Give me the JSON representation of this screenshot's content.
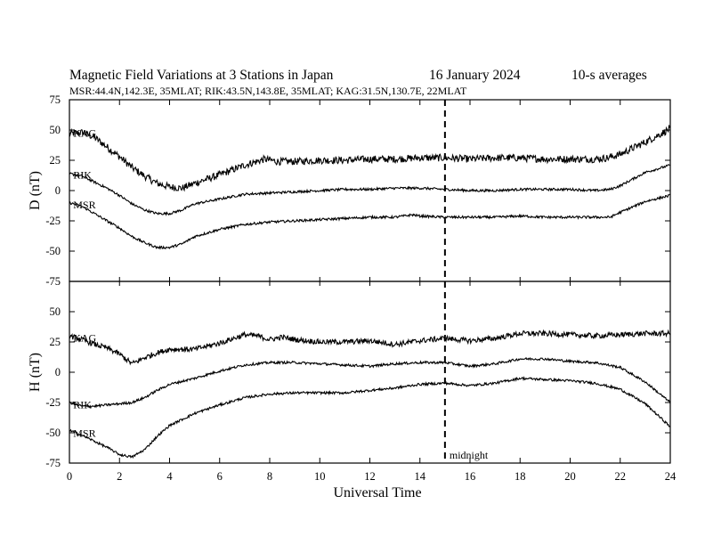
{
  "chart_data": {
    "type": "line",
    "title": {
      "main": "Magnetic Field Variations at 3 Stations in Japan",
      "date": "16 January  2024",
      "avg": "10-s averages"
    },
    "subtitle": "MSR:44.4N,142.3E, 35MLAT;  RIK:43.5N,143.8E, 35MLAT;  KAG:31.5N,130.7E, 22MLAT",
    "xlabel": "Universal Time",
    "xlim": [
      0,
      24
    ],
    "xticks": [
      0,
      2,
      4,
      6,
      8,
      10,
      12,
      14,
      16,
      18,
      20,
      22,
      24
    ],
    "midnight": {
      "x": 15,
      "label": "midnight"
    },
    "panels": [
      {
        "id": "D",
        "ylabel": "D (nT)",
        "ylim": [
          -75,
          75
        ],
        "yticks": [
          75,
          50,
          25,
          0,
          -25,
          -50,
          -75
        ],
        "series": [
          {
            "name": "KAG",
            "noise": 3.0,
            "points": [
              [
                0,
                47
              ],
              [
                0.5,
                48
              ],
              [
                1,
                44
              ],
              [
                1.5,
                36
              ],
              [
                2,
                28
              ],
              [
                2.5,
                19
              ],
              [
                3,
                12
              ],
              [
                3.5,
                6
              ],
              [
                4,
                3
              ],
              [
                4.5,
                2
              ],
              [
                5,
                6
              ],
              [
                6,
                13
              ],
              [
                7,
                21
              ],
              [
                7.8,
                26
              ],
              [
                8.3,
                24
              ],
              [
                9,
                24
              ],
              [
                10,
                25
              ],
              [
                11,
                25
              ],
              [
                12,
                26
              ],
              [
                13,
                26
              ],
              [
                14,
                27
              ],
              [
                15,
                27
              ],
              [
                16,
                26
              ],
              [
                17,
                27
              ],
              [
                18,
                27
              ],
              [
                19,
                26
              ],
              [
                20,
                26
              ],
              [
                21,
                26
              ],
              [
                21.5,
                27
              ],
              [
                22,
                30
              ],
              [
                23,
                40
              ],
              [
                24,
                51
              ]
            ]
          },
          {
            "name": "RIK",
            "noise": 1.0,
            "points": [
              [
                0,
                14
              ],
              [
                0.5,
                12
              ],
              [
                1,
                7
              ],
              [
                1.5,
                2
              ],
              [
                2,
                -4
              ],
              [
                2.5,
                -11
              ],
              [
                3,
                -16
              ],
              [
                3.5,
                -19
              ],
              [
                4,
                -19
              ],
              [
                4.5,
                -16
              ],
              [
                5,
                -11
              ],
              [
                6,
                -7
              ],
              [
                7,
                -3
              ],
              [
                8,
                -2
              ],
              [
                9,
                -1
              ],
              [
                10,
                0
              ],
              [
                11,
                1
              ],
              [
                12,
                1
              ],
              [
                13,
                2
              ],
              [
                14,
                2
              ],
              [
                15,
                1
              ],
              [
                16,
                0
              ],
              [
                17,
                0
              ],
              [
                18,
                1
              ],
              [
                19,
                1
              ],
              [
                20,
                1
              ],
              [
                21,
                0
              ],
              [
                21.6,
                1
              ],
              [
                22,
                4
              ],
              [
                23,
                15
              ],
              [
                24,
                21
              ]
            ]
          },
          {
            "name": "MSR",
            "noise": 1.0,
            "points": [
              [
                0,
                -10
              ],
              [
                0.5,
                -13
              ],
              [
                1,
                -19
              ],
              [
                1.5,
                -25
              ],
              [
                2,
                -31
              ],
              [
                2.5,
                -38
              ],
              [
                3,
                -43
              ],
              [
                3.5,
                -47
              ],
              [
                4,
                -47
              ],
              [
                4.5,
                -44
              ],
              [
                5,
                -38
              ],
              [
                6,
                -32
              ],
              [
                7,
                -28
              ],
              [
                8,
                -26
              ],
              [
                9,
                -25
              ],
              [
                10,
                -24
              ],
              [
                11,
                -23
              ],
              [
                12,
                -22
              ],
              [
                13,
                -22
              ],
              [
                13.7,
                -20
              ],
              [
                14,
                -21
              ],
              [
                15,
                -22
              ],
              [
                16,
                -22
              ],
              [
                17,
                -22
              ],
              [
                18,
                -21
              ],
              [
                19,
                -22
              ],
              [
                20,
                -22
              ],
              [
                21,
                -22
              ],
              [
                21.6,
                -22
              ],
              [
                22,
                -18
              ],
              [
                23,
                -9
              ],
              [
                24,
                -4
              ]
            ]
          }
        ]
      },
      {
        "id": "H",
        "ylabel": "H (nT)",
        "ylim": [
          -75,
          75
        ],
        "yticks": [
          75,
          50,
          25,
          0,
          -25,
          -50,
          -75
        ],
        "series": [
          {
            "name": "KAG",
            "noise": 2.2,
            "points": [
              [
                0,
                30
              ],
              [
                0.5,
                27
              ],
              [
                1,
                23
              ],
              [
                1.5,
                20
              ],
              [
                2,
                15
              ],
              [
                2.5,
                7
              ],
              [
                3,
                12
              ],
              [
                3.5,
                16
              ],
              [
                4,
                19
              ],
              [
                5,
                19
              ],
              [
                6,
                24
              ],
              [
                7,
                31
              ],
              [
                7.5,
                30
              ],
              [
                8,
                27
              ],
              [
                8.5,
                29
              ],
              [
                9,
                27
              ],
              [
                10,
                25
              ],
              [
                11,
                25
              ],
              [
                12,
                26
              ],
              [
                13,
                23
              ],
              [
                14,
                26
              ],
              [
                15,
                28
              ],
              [
                16,
                26
              ],
              [
                17,
                28
              ],
              [
                18,
                32
              ],
              [
                19,
                32
              ],
              [
                20,
                31
              ],
              [
                21,
                30
              ],
              [
                22,
                31
              ],
              [
                23,
                32
              ],
              [
                24,
                32
              ]
            ]
          },
          {
            "name": "RIK",
            "noise": 1.0,
            "points": [
              [
                0,
                -25
              ],
              [
                0.5,
                -28
              ],
              [
                1,
                -28
              ],
              [
                1.5,
                -27
              ],
              [
                2,
                -26
              ],
              [
                2.5,
                -25
              ],
              [
                3,
                -21
              ],
              [
                3.5,
                -15
              ],
              [
                4,
                -10
              ],
              [
                5,
                -5
              ],
              [
                6,
                1
              ],
              [
                7,
                6
              ],
              [
                8,
                8
              ],
              [
                9,
                8
              ],
              [
                10,
                7
              ],
              [
                11,
                6
              ],
              [
                12,
                5
              ],
              [
                13,
                7
              ],
              [
                14,
                8
              ],
              [
                15,
                8
              ],
              [
                16,
                5
              ],
              [
                17,
                7
              ],
              [
                18,
                11
              ],
              [
                19,
                11
              ],
              [
                20,
                9
              ],
              [
                21,
                8
              ],
              [
                22,
                4
              ],
              [
                23,
                -8
              ],
              [
                24,
                -25
              ]
            ]
          },
          {
            "name": "MSR",
            "noise": 1.0,
            "points": [
              [
                0,
                -48
              ],
              [
                0.5,
                -52
              ],
              [
                1,
                -57
              ],
              [
                1.5,
                -62
              ],
              [
                2,
                -68
              ],
              [
                2.5,
                -70
              ],
              [
                3,
                -64
              ],
              [
                3.5,
                -53
              ],
              [
                4,
                -44
              ],
              [
                5,
                -34
              ],
              [
                6,
                -27
              ],
              [
                7,
                -21
              ],
              [
                8,
                -18
              ],
              [
                9,
                -17
              ],
              [
                10,
                -17
              ],
              [
                11,
                -17
              ],
              [
                12,
                -15
              ],
              [
                13,
                -13
              ],
              [
                14,
                -10
              ],
              [
                15,
                -9
              ],
              [
                16,
                -11
              ],
              [
                17,
                -9
              ],
              [
                18,
                -5
              ],
              [
                19,
                -6
              ],
              [
                20,
                -7
              ],
              [
                21,
                -9
              ],
              [
                22,
                -14
              ],
              [
                23,
                -26
              ],
              [
                24,
                -45
              ]
            ]
          }
        ]
      }
    ]
  }
}
